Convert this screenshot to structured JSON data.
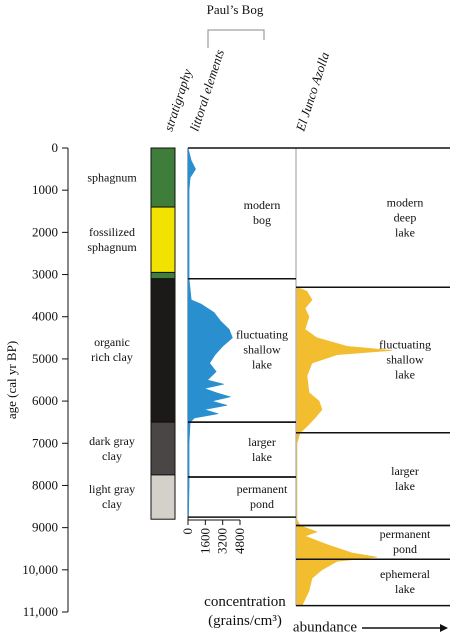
{
  "header": {
    "site": "Paul’s Bog"
  },
  "chart_data": {
    "type": "stratigraphic-diagram",
    "y_label": "age (cal yr BP)",
    "ylim": [
      0,
      11000
    ],
    "yticks": [
      0,
      1000,
      2000,
      3000,
      4000,
      5000,
      6000,
      7000,
      8000,
      9000,
      {
        "value": 10000,
        "label": "10,000"
      },
      {
        "value": 11000,
        "label": "11,000"
      }
    ],
    "stratigraphy": {
      "title": "stratigraphy",
      "layers": [
        {
          "label": "sphagnum",
          "top": 0,
          "bottom": 1400,
          "color": "#3f7d3b"
        },
        {
          "label": "fossilized\nsphagnum",
          "top": 1400,
          "bottom": 2950,
          "color": "#f2e200"
        },
        {
          "label": null,
          "top": 2950,
          "bottom": 3100,
          "color": "#3f7d3b"
        },
        {
          "label": "organic\nrich clay",
          "top": 3100,
          "bottom": 6500,
          "color": "#1c1a18"
        },
        {
          "label": "dark gray\nclay",
          "top": 6500,
          "bottom": 7750,
          "color": "#4a4646"
        },
        {
          "label": "light gray\nclay",
          "top": 7750,
          "bottom": 8800,
          "color": "#d4d1cb"
        }
      ]
    },
    "littoral": {
      "title": "littoral elements",
      "x_label": "concentration\n(grains/cm³)",
      "xlim": [
        0,
        4800
      ],
      "xticks": [
        0,
        1600,
        3200,
        4800
      ],
      "color": "#2a8fcf",
      "age": [
        0,
        300,
        500,
        700,
        1000,
        3100,
        3600,
        3700,
        3900,
        4100,
        4300,
        4500,
        4700,
        4900,
        5100,
        5300,
        5500,
        5600,
        5700,
        5800,
        5900,
        6000,
        6100,
        6200,
        6300,
        6400,
        6500,
        7000,
        8000,
        8750
      ],
      "values": [
        0,
        300,
        700,
        200,
        100,
        100,
        300,
        1200,
        2400,
        3000,
        3800,
        4100,
        3200,
        2500,
        2000,
        2600,
        1800,
        3300,
        1500,
        2600,
        3900,
        2200,
        3600,
        1500,
        2800,
        600,
        200,
        100,
        100,
        50
      ],
      "zones": [
        {
          "label": "modern\nbog",
          "top": 0,
          "bottom": 3100
        },
        {
          "label": "fluctuating\nshallow\nlake",
          "top": 3100,
          "bottom": 6500
        },
        {
          "label": "larger\nlake",
          "top": 6500,
          "bottom": 7800
        },
        {
          "label": "permanent\npond",
          "top": 7800,
          "bottom": 8750
        }
      ]
    },
    "azolla": {
      "title": "El Junco Azolla",
      "x_label": "abundance",
      "xlim": [
        0,
        100
      ],
      "color": "#f3bd30",
      "age": [
        3300,
        3400,
        3600,
        3800,
        4000,
        4300,
        4500,
        4700,
        4800,
        4900,
        5100,
        5400,
        5800,
        6000,
        6200,
        6400,
        6600,
        6750,
        7000,
        8800,
        8950,
        9100,
        9200,
        9400,
        9600,
        9700,
        9800,
        10000,
        10200,
        10500,
        10700,
        10850
      ],
      "values": [
        0,
        10,
        15,
        8,
        12,
        8,
        20,
        50,
        95,
        40,
        15,
        10,
        12,
        22,
        25,
        18,
        10,
        3,
        0,
        0,
        3,
        20,
        8,
        30,
        55,
        80,
        40,
        25,
        15,
        12,
        8,
        5
      ],
      "zones": [
        {
          "label": "modern\ndeep\nlake",
          "top": 0,
          "bottom": 3300
        },
        {
          "label": "fluctuating\nshallow\nlake",
          "top": 3300,
          "bottom": 6750
        },
        {
          "label": "larger\nlake",
          "top": 6750,
          "bottom": 8950
        },
        {
          "label": "permanent\npond",
          "top": 8950,
          "bottom": 9750
        },
        {
          "label": "ephemeral\nlake",
          "top": 9750,
          "bottom": 10850
        }
      ]
    }
  }
}
